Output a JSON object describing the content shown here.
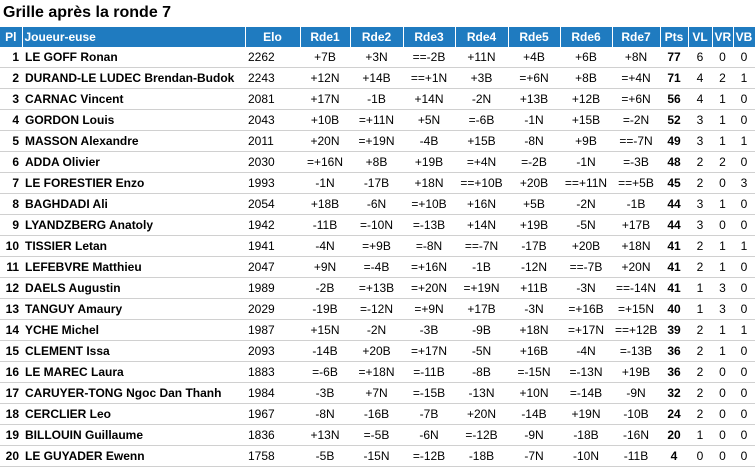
{
  "header": {
    "title": "Grille après la ronde 7"
  },
  "table": {
    "columns": [
      "Pl",
      "Joueur-euse",
      "Elo",
      "Rde1",
      "Rde2",
      "Rde3",
      "Rde4",
      "Rde5",
      "Rde6",
      "Rde7",
      "Pts",
      "VL",
      "VR",
      "VB"
    ],
    "rows": [
      [
        1,
        "LE GOFF Ronan",
        2262,
        "+7B",
        "+3N",
        "==-2B",
        "+11N",
        "+4B",
        "+6B",
        "+8N",
        77,
        6,
        0,
        0
      ],
      [
        2,
        "DURAND-LE LUDEC Brendan-Budok",
        2243,
        "+12N",
        "+14B",
        "==+1N",
        "+3B",
        "=+6N",
        "+8B",
        "=+4N",
        71,
        4,
        2,
        1
      ],
      [
        3,
        "CARNAC Vincent",
        2081,
        "+17N",
        "-1B",
        "+14N",
        "-2N",
        "+13B",
        "+12B",
        "=+6N",
        56,
        4,
        1,
        0
      ],
      [
        4,
        "GORDON Louis",
        2043,
        "+10B",
        "=+11N",
        "+5N",
        "=-6B",
        "-1N",
        "+15B",
        "=-2N",
        52,
        3,
        1,
        0
      ],
      [
        5,
        "MASSON Alexandre",
        2011,
        "+20N",
        "=+19N",
        "-4B",
        "+15B",
        "-8N",
        "+9B",
        "==-7N",
        49,
        3,
        1,
        1
      ],
      [
        6,
        "ADDA Olivier",
        2030,
        "=+16N",
        "+8B",
        "+19B",
        "=+4N",
        "=-2B",
        "-1N",
        "=-3B",
        48,
        2,
        2,
        0
      ],
      [
        7,
        "LE FORESTIER Enzo",
        1993,
        "-1N",
        "-17B",
        "+18N",
        "==+10B",
        "+20B",
        "==+11N",
        "==+5B",
        45,
        2,
        0,
        3
      ],
      [
        8,
        "BAGHDADI Ali",
        2054,
        "+18B",
        "-6N",
        "=+10B",
        "+16N",
        "+5B",
        "-2N",
        "-1B",
        44,
        3,
        1,
        0
      ],
      [
        9,
        "LYANDZBERG Anatoly",
        1942,
        "-11B",
        "=-10N",
        "=-13B",
        "+14N",
        "+19B",
        "-5N",
        "+17B",
        44,
        3,
        0,
        0
      ],
      [
        10,
        "TISSIER Letan",
        1941,
        "-4N",
        "=+9B",
        "=-8N",
        "==-7N",
        "-17B",
        "+20B",
        "+18N",
        41,
        2,
        1,
        1
      ],
      [
        11,
        "LEFEBVRE Matthieu",
        2047,
        "+9N",
        "=-4B",
        "=+16N",
        "-1B",
        "-12N",
        "==-7B",
        "+20N",
        41,
        2,
        1,
        0
      ],
      [
        12,
        "DAELS Augustin",
        1989,
        "-2B",
        "=+13B",
        "=+20N",
        "=+19N",
        "+11B",
        "-3N",
        "==-14N",
        41,
        1,
        3,
        0
      ],
      [
        13,
        "TANGUY Amaury",
        2029,
        "-19B",
        "=-12N",
        "=+9N",
        "+17B",
        "-3N",
        "=+16B",
        "=+15N",
        40,
        1,
        3,
        0
      ],
      [
        14,
        "YCHE Michel",
        1987,
        "+15N",
        "-2N",
        "-3B",
        "-9B",
        "+18N",
        "=+17N",
        "==+12B",
        39,
        2,
        1,
        1
      ],
      [
        15,
        "CLEMENT Issa",
        2093,
        "-14B",
        "+20B",
        "=+17N",
        "-5N",
        "+16B",
        "-4N",
        "=-13B",
        36,
        2,
        1,
        0
      ],
      [
        16,
        "LE MAREC Laura",
        1883,
        "=-6B",
        "=+18N",
        "=-11B",
        "-8B",
        "=-15N",
        "=-13N",
        "+19B",
        36,
        2,
        0,
        0
      ],
      [
        17,
        "CARUYER-TONG Ngoc Dan Thanh",
        1984,
        "-3B",
        "+7N",
        "=-15B",
        "-13N",
        "+10N",
        "=-14B",
        "-9N",
        32,
        2,
        0,
        0
      ],
      [
        18,
        "CERCLIER Leo",
        1967,
        "-8N",
        "-16B",
        "-7B",
        "+20N",
        "-14B",
        "+19N",
        "-10B",
        24,
        2,
        0,
        0
      ],
      [
        19,
        "BILLOUIN Guillaume",
        1836,
        "+13N",
        "=-5B",
        "-6N",
        "=-12B",
        "-9N",
        "-18B",
        "-16N",
        20,
        1,
        0,
        0
      ],
      [
        20,
        "LE GUYADER Ewenn",
        1758,
        "-5B",
        "-15N",
        "=-12B",
        "-18B",
        "-7N",
        "-10N",
        "-11B",
        4,
        0,
        0,
        0
      ]
    ]
  }
}
